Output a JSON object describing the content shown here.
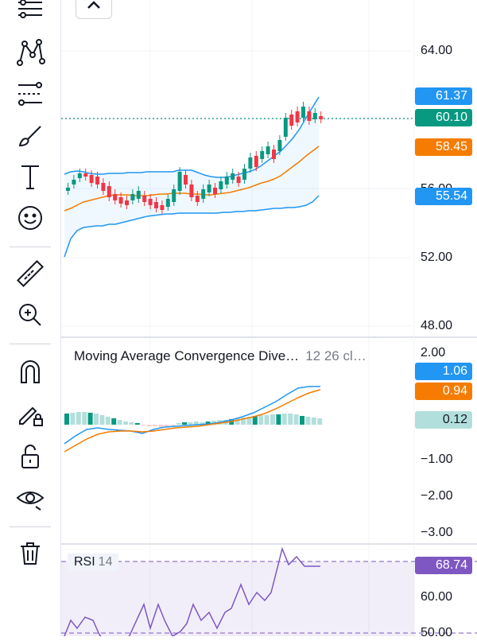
{
  "toolbar": {
    "tools": [
      {
        "name": "lines-tool-icon"
      },
      {
        "name": "pattern-tool-icon"
      },
      {
        "name": "fib-tool-icon"
      },
      {
        "name": "brush-tool-icon"
      },
      {
        "name": "text-tool-icon"
      },
      {
        "name": "emoji-tool-icon"
      },
      {
        "name": "ruler-tool-icon"
      },
      {
        "name": "zoom-in-tool-icon"
      },
      {
        "name": "magnet-tool-icon"
      },
      {
        "name": "lock-drawing-tool-icon"
      },
      {
        "name": "lock-tool-icon"
      },
      {
        "name": "eye-tool-icon"
      },
      {
        "name": "trash-tool-icon"
      }
    ]
  },
  "price_axis": {
    "labels": [
      "64.00",
      "56.00",
      "52.00",
      "48.00"
    ]
  },
  "price_tags": [
    {
      "value": "61.37",
      "color": "#2196f3"
    },
    {
      "value": "60.10",
      "color": "#089981"
    },
    {
      "value": "58.45",
      "color": "#f57c00"
    },
    {
      "value": "55.54",
      "color": "#2196f3"
    }
  ],
  "macd": {
    "title": "Moving Average Convergence Dive…",
    "params": "12 26 cl…",
    "axis_labels": [
      "2.00",
      "−1.00",
      "−2.00",
      "−3.00"
    ],
    "tags": [
      {
        "value": "1.06",
        "color": "#2196f3",
        "text": "#ffffff"
      },
      {
        "value": "0.94",
        "color": "#f57c00",
        "text": "#ffffff"
      },
      {
        "value": "0.12",
        "color": "#b2dfdb",
        "text": "#131722"
      }
    ]
  },
  "rsi": {
    "title": "RSI",
    "params": "14",
    "axis_labels": [
      "60.00",
      "50.00"
    ],
    "tag": {
      "value": "68.74",
      "color": "#7e57c2"
    }
  },
  "colors": {
    "up": "#089981",
    "down": "#f23645",
    "bb": "#2196f3",
    "ma": "#f57c00",
    "rsi": "#7e57c2"
  }
}
